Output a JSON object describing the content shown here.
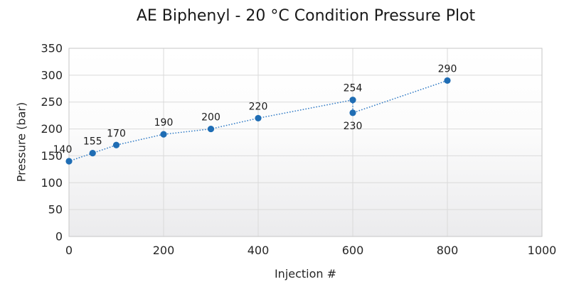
{
  "chart_data": {
    "type": "scatter",
    "title": "AE Biphenyl - 20 °C Condition Pressure Plot",
    "xlabel": "Injection #",
    "ylabel": "Pressure (bar)",
    "xlim": [
      0,
      1000
    ],
    "ylim": [
      0,
      350
    ],
    "xticks": [
      0,
      200,
      400,
      600,
      800,
      1000
    ],
    "yticks": [
      0,
      50,
      100,
      150,
      200,
      250,
      300,
      350
    ],
    "grid": true,
    "legend": "none",
    "line_style": "dotted",
    "points": [
      {
        "x": 0,
        "y": 140,
        "label": "140",
        "label_dx": -9
      },
      {
        "x": 50,
        "y": 155,
        "label": "155"
      },
      {
        "x": 100,
        "y": 170,
        "label": "170"
      },
      {
        "x": 200,
        "y": 190,
        "label": "190"
      },
      {
        "x": 300,
        "y": 200,
        "label": "200"
      },
      {
        "x": 400,
        "y": 220,
        "label": "220"
      },
      {
        "x": 600,
        "y": 254,
        "label": "254"
      },
      {
        "x": 600,
        "y": 230,
        "label": "230",
        "label_below": true
      },
      {
        "x": 800,
        "y": 290,
        "label": "290"
      }
    ],
    "colors": {
      "marker": "#1F6DB4",
      "line": "#377FC7",
      "grid": "#DADADA",
      "border": "#C6C6C6",
      "text": "#262626",
      "plot_bg_top": "#FFFFFF",
      "plot_bg_bottom": "#EBEBED"
    }
  }
}
